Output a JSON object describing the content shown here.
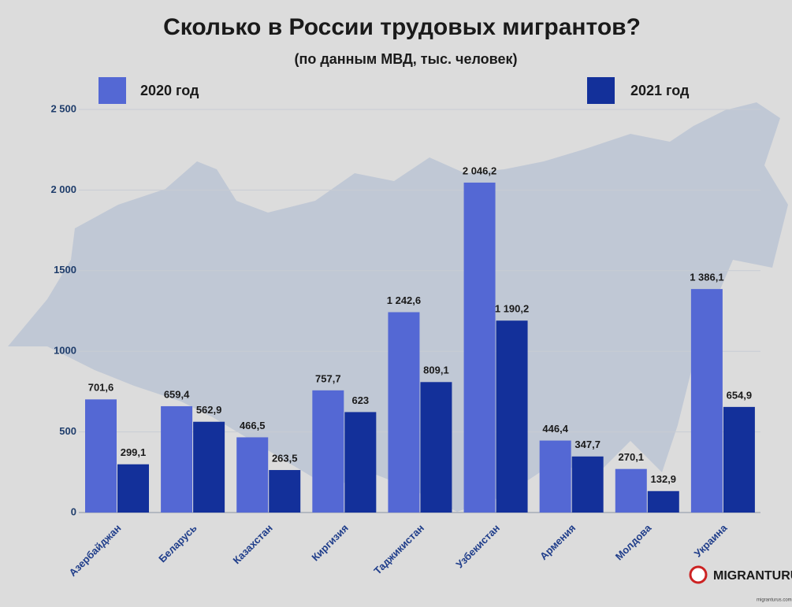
{
  "chart_data": {
    "type": "bar",
    "title": "Сколько в России трудовых мигрантов?",
    "subtitle": "(по данным МВД, тыс. человек)",
    "categories": [
      "Азербайджан",
      "Беларусь",
      "Казахстан",
      "Киргизия",
      "Таджикистан",
      "Узбекистан",
      "Армения",
      "Молдова",
      "Украина"
    ],
    "series": [
      {
        "name": "2020 год",
        "color": "#5468d4",
        "values": [
          701.6,
          659.4,
          466.5,
          757.7,
          1242.6,
          2046.2,
          446.4,
          270.1,
          1386.1
        ],
        "value_labels": [
          "701,6",
          "659,4",
          "466,5",
          "757,7",
          "1 242,6",
          "2 046,2",
          "446,4",
          "270,1",
          "1 386,1"
        ]
      },
      {
        "name": "2021 год",
        "color": "#13309a",
        "values": [
          299.1,
          562.9,
          263.5,
          623,
          809.1,
          1190.2,
          347.7,
          132.9,
          654.9
        ],
        "value_labels": [
          "299,1",
          "562,9",
          "263,5",
          "623",
          "809,1",
          "1 190,2",
          "347,7",
          "132,9",
          "654,9"
        ]
      }
    ],
    "ylim": [
      0,
      2500
    ],
    "yticks": [
      0,
      500,
      1000,
      1500,
      {
        "value": 2000,
        "label": "2 000"
      },
      {
        "value": 2500,
        "label": "2 500"
      }
    ],
    "grid": true,
    "brand": "MIGRANTURU",
    "brand_url": "migranturus.com"
  }
}
